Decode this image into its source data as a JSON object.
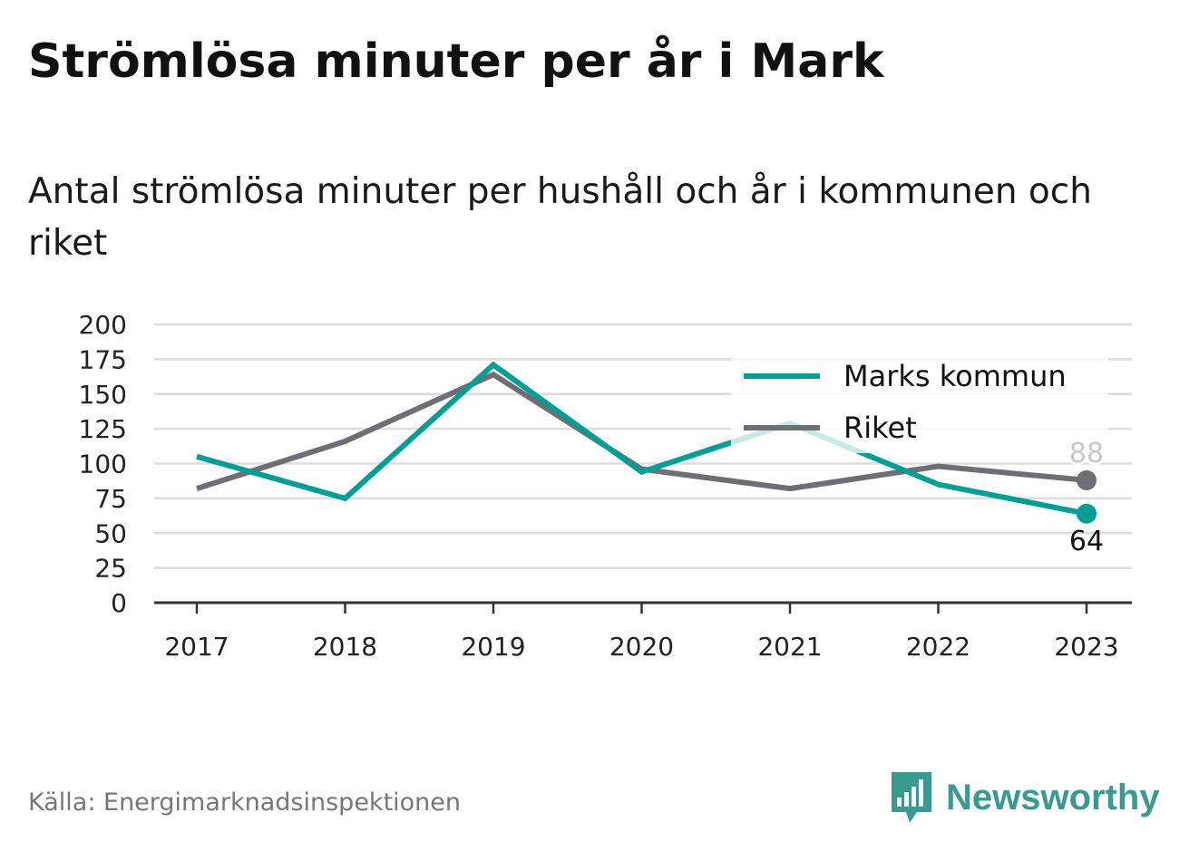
{
  "title": "Strömlösa minuter per år i Mark",
  "subtitle": "Antal strömlösa minuter per hushåll och år i kommunen och riket",
  "source": "Källa: Energimarknadsinspektionen",
  "logo": {
    "text": "Newsworthy",
    "icon": "bar-chart-speech-bubble-icon"
  },
  "colors": {
    "marks": "#009e94",
    "riket": "#6e6e74",
    "grid": "#dddddd",
    "axis": "#333333",
    "logo": "#3a9a90"
  },
  "chart_data": {
    "type": "line",
    "categories": [
      "2017",
      "2018",
      "2019",
      "2020",
      "2021",
      "2022",
      "2023"
    ],
    "series": [
      {
        "name": "Marks kommun",
        "values": [
          105,
          75,
          171,
          94,
          129,
          85,
          64
        ],
        "color": "#009e94"
      },
      {
        "name": "Riket",
        "values": [
          82,
          116,
          164,
          96,
          82,
          98,
          88
        ],
        "color": "#6e6e74"
      }
    ],
    "ylim": [
      0,
      200
    ],
    "yticks": [
      "0",
      "25",
      "50",
      "75",
      "100",
      "125",
      "150",
      "175",
      "200"
    ],
    "end_labels": [
      "64",
      "88"
    ],
    "legend_position": "top-right",
    "grid": true
  }
}
